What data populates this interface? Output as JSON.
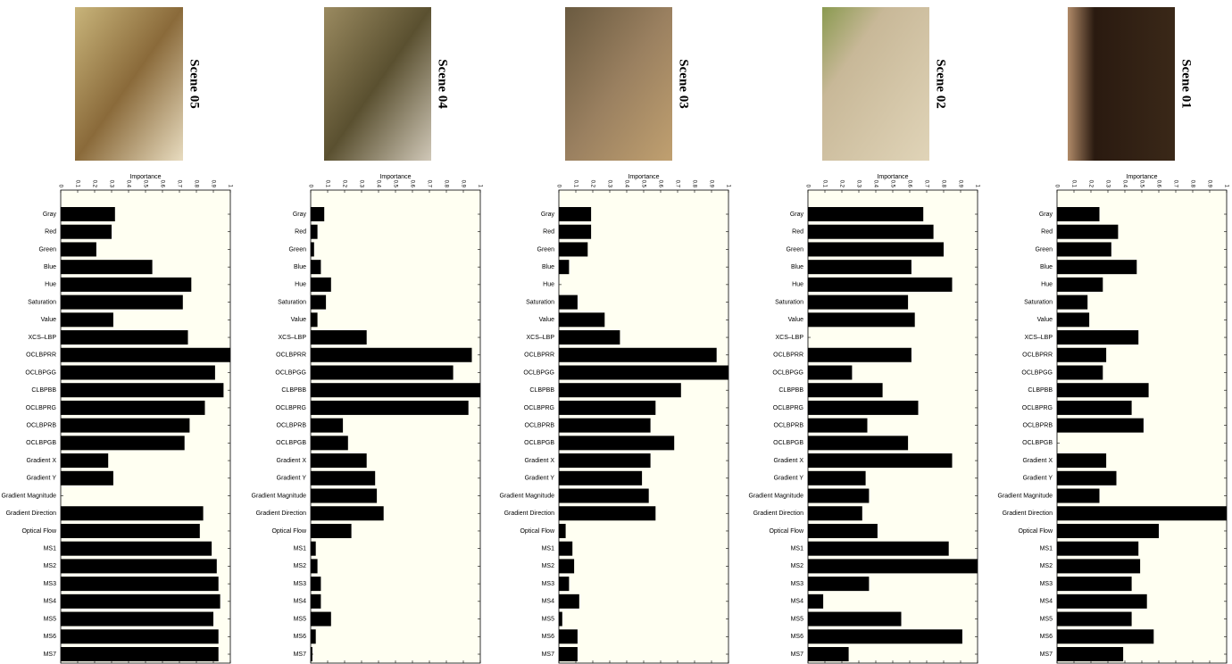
{
  "chart_data": [
    {
      "type": "bar",
      "orientation": "horizontal",
      "title": "Scene 05",
      "xlabel": "Importance",
      "color": "#000000",
      "background": "#fffff2",
      "categories": [
        "Gray",
        "Red",
        "Green",
        "Blue",
        "Hue",
        "Saturation",
        "Value",
        "XCS–LBP",
        "OCLBPRR",
        "OCLBPGG",
        "CLBPBB",
        "OCLBPRG",
        "OCLBPRB",
        "OCLBPGB",
        "Gradient X",
        "Gradient Y",
        "Gradient Magnitude",
        "Gradient Direction",
        "Optical Flow",
        "MS1",
        "MS2",
        "MS3",
        "MS4",
        "MS5",
        "MS6",
        "MS7"
      ],
      "values": [
        0.32,
        0.3,
        0.21,
        0.54,
        0.77,
        0.72,
        0.31,
        0.75,
        1.0,
        0.91,
        0.96,
        0.85,
        0.76,
        0.73,
        0.28,
        0.31,
        0,
        0.84,
        0.82,
        0.89,
        0.92,
        0.93,
        0.94,
        0.9,
        0.93,
        0.93
      ],
      "xlim": [
        0,
        1
      ],
      "xticks": [
        0,
        0.1,
        0.2,
        0.3,
        0.4,
        0.5,
        0.6,
        0.7,
        0.8,
        0.9,
        1
      ]
    },
    {
      "type": "bar",
      "orientation": "horizontal",
      "title": "Scene 04",
      "xlabel": "Importance",
      "color": "#000000",
      "background": "#fffff2",
      "categories": [
        "Gray",
        "Red",
        "Green",
        "Blue",
        "Hue",
        "Saturation",
        "Value",
        "XCS–LBP",
        "OCLBPRR",
        "OCLBPGG",
        "CLBPBB",
        "OCLBPRG",
        "OCLBPRB",
        "OCLBPGB",
        "Gradient X",
        "Gradient Y",
        "Gradient Magnitude",
        "Gradient Direction",
        "Optical Flow",
        "MS1",
        "MS2",
        "MS3",
        "MS4",
        "MS5",
        "MS6",
        "MS7"
      ],
      "values": [
        0.08,
        0.04,
        0.02,
        0.06,
        0.12,
        0.09,
        0.04,
        0.33,
        0.95,
        0.84,
        1.0,
        0.93,
        0.19,
        0.22,
        0.33,
        0.38,
        0.39,
        0.43,
        0.24,
        0.03,
        0.04,
        0.06,
        0.06,
        0.12,
        0.03,
        0.01
      ],
      "xlim": [
        0,
        1
      ],
      "xticks": [
        0,
        0.1,
        0.2,
        0.3,
        0.4,
        0.5,
        0.6,
        0.7,
        0.8,
        0.9,
        1
      ]
    },
    {
      "type": "bar",
      "orientation": "horizontal",
      "title": "Scene 03",
      "xlabel": "Importance",
      "color": "#000000",
      "background": "#fffff2",
      "categories": [
        "Gray",
        "Red",
        "Green",
        "Blue",
        "Hue",
        "Saturation",
        "Value",
        "XCS–LBP",
        "OCLBPRR",
        "OCLBPGG",
        "CLBPBB",
        "OCLBPRG",
        "OCLBPRB",
        "OCLBPGB",
        "Gradient X",
        "Gradient Y",
        "Gradient Magnitude",
        "Gradient Direction",
        "Optical Flow",
        "MS1",
        "MS2",
        "MS3",
        "MS4",
        "MS5",
        "MS6",
        "MS7"
      ],
      "values": [
        0.19,
        0.19,
        0.17,
        0.06,
        0,
        0.11,
        0.27,
        0.36,
        0.93,
        1.0,
        0.72,
        0.57,
        0.54,
        0.68,
        0.54,
        0.49,
        0.53,
        0.57,
        0.04,
        0.08,
        0.09,
        0.06,
        0.12,
        0.02,
        0.11,
        0.11
      ],
      "xlim": [
        0,
        1
      ],
      "xticks": [
        0,
        0.1,
        0.2,
        0.3,
        0.4,
        0.5,
        0.6,
        0.7,
        0.8,
        0.9,
        1
      ]
    },
    {
      "type": "bar",
      "orientation": "horizontal",
      "title": "Scene 02",
      "xlabel": "Importance",
      "color": "#000000",
      "background": "#fffff2",
      "categories": [
        "Gray",
        "Red",
        "Green",
        "Blue",
        "Hue",
        "Saturation",
        "Value",
        "XCS–LBP",
        "OCLBPRR",
        "OCLBPGG",
        "CLBPBB",
        "OCLBPRG",
        "OCLBPRB",
        "OCLBPGB",
        "Gradient X",
        "Gradient Y",
        "Gradient Magnitude",
        "Gradient Direction",
        "Optical Flow",
        "MS1",
        "MS2",
        "MS3",
        "MS4",
        "MS5",
        "MS6",
        "MS7"
      ],
      "values": [
        0.68,
        0.74,
        0.8,
        0.61,
        0.85,
        0.59,
        0.63,
        0,
        0.61,
        0.26,
        0.44,
        0.65,
        0.35,
        0.59,
        0.85,
        0.34,
        0.36,
        0.32,
        0.41,
        0.83,
        1.0,
        0.36,
        0.09,
        0.55,
        0.91,
        0.24
      ],
      "xlim": [
        0,
        1
      ],
      "xticks": [
        0,
        0.1,
        0.2,
        0.3,
        0.4,
        0.5,
        0.6,
        0.7,
        0.8,
        0.9,
        1
      ]
    },
    {
      "type": "bar",
      "orientation": "horizontal",
      "title": "Scene 01",
      "xlabel": "Importance",
      "color": "#000000",
      "background": "#fffff2",
      "categories": [
        "Gray",
        "Red",
        "Green",
        "Blue",
        "Hue",
        "Saturation",
        "Value",
        "XCS–LBP",
        "OCLBPRR",
        "OCLBPGG",
        "CLBPBB",
        "OCLBPRG",
        "OCLBPRB",
        "OCLBPGB",
        "Gradient X",
        "Gradient Y",
        "Gradient Magnitude",
        "Gradient Direction",
        "Optical Flow",
        "MS1",
        "MS2",
        "MS3",
        "MS4",
        "MS5",
        "MS6",
        "MS7"
      ],
      "values": [
        0.25,
        0.36,
        0.32,
        0.47,
        0.27,
        0.18,
        0.19,
        0.48,
        0.29,
        0.27,
        0.54,
        0.44,
        0.51,
        0,
        0.29,
        0.35,
        0.25,
        1.0,
        0.6,
        0.48,
        0.49,
        0.44,
        0.53,
        0.44,
        0.57,
        0.39
      ],
      "xlim": [
        0,
        1
      ],
      "xticks": [
        0,
        0.1,
        0.2,
        0.3,
        0.4,
        0.5,
        0.6,
        0.7,
        0.8,
        0.9,
        1
      ]
    }
  ]
}
